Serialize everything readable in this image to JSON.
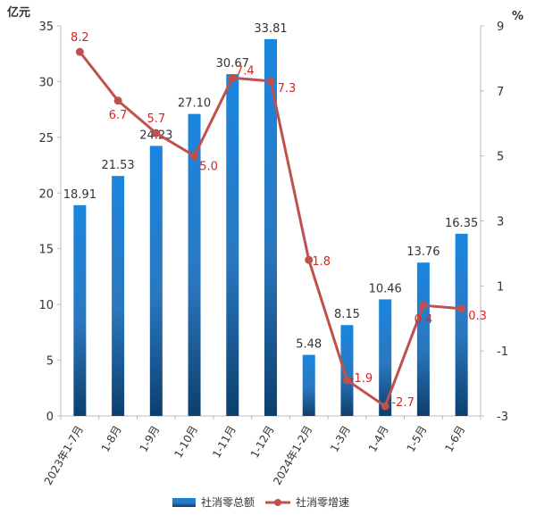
{
  "chart_data": {
    "type": "bar+line",
    "title": "",
    "categories": [
      "2023年1-7月",
      "1-8月",
      "1-9月",
      "1-10月",
      "1-11月",
      "1-12月",
      "2024年1-2月",
      "1-3月",
      "1-4月",
      "1-5月",
      "1-6月"
    ],
    "series": [
      {
        "name": "社消零总额",
        "type": "bar",
        "axis": "left",
        "values": [
          18.91,
          21.53,
          24.23,
          27.1,
          30.67,
          33.81,
          5.48,
          8.15,
          10.46,
          13.76,
          16.35
        ],
        "labels": [
          "18.91",
          "21.53",
          "24.23",
          "27.10",
          "30.67",
          "33.81",
          "5.48",
          "8.15",
          "10.46",
          "13.76",
          "16.35"
        ],
        "color": "#1a7fd4"
      },
      {
        "name": "社消零增速",
        "type": "line",
        "axis": "right",
        "values": [
          8.2,
          6.7,
          5.7,
          5.0,
          7.4,
          7.3,
          1.8,
          -1.9,
          -2.7,
          0.4,
          0.3
        ],
        "labels": [
          "8.2",
          "6.7",
          "5.7",
          "5.0",
          "7.4",
          "7.3",
          "1.8",
          "-1.9",
          "-2.7",
          "0.4",
          "0.3"
        ],
        "color": "#c0504d"
      }
    ],
    "y_left": {
      "unit": "亿元",
      "ylim": [
        0,
        35
      ],
      "ticks": [
        "0",
        "5",
        "10",
        "15",
        "20",
        "25",
        "30",
        "35"
      ]
    },
    "y_right": {
      "unit": "%",
      "ylim": [
        -3,
        9
      ],
      "ticks": [
        "-3",
        "-1",
        "1",
        "3",
        "5",
        "7",
        "9"
      ]
    },
    "grid": false,
    "legend_position": "bottom"
  }
}
